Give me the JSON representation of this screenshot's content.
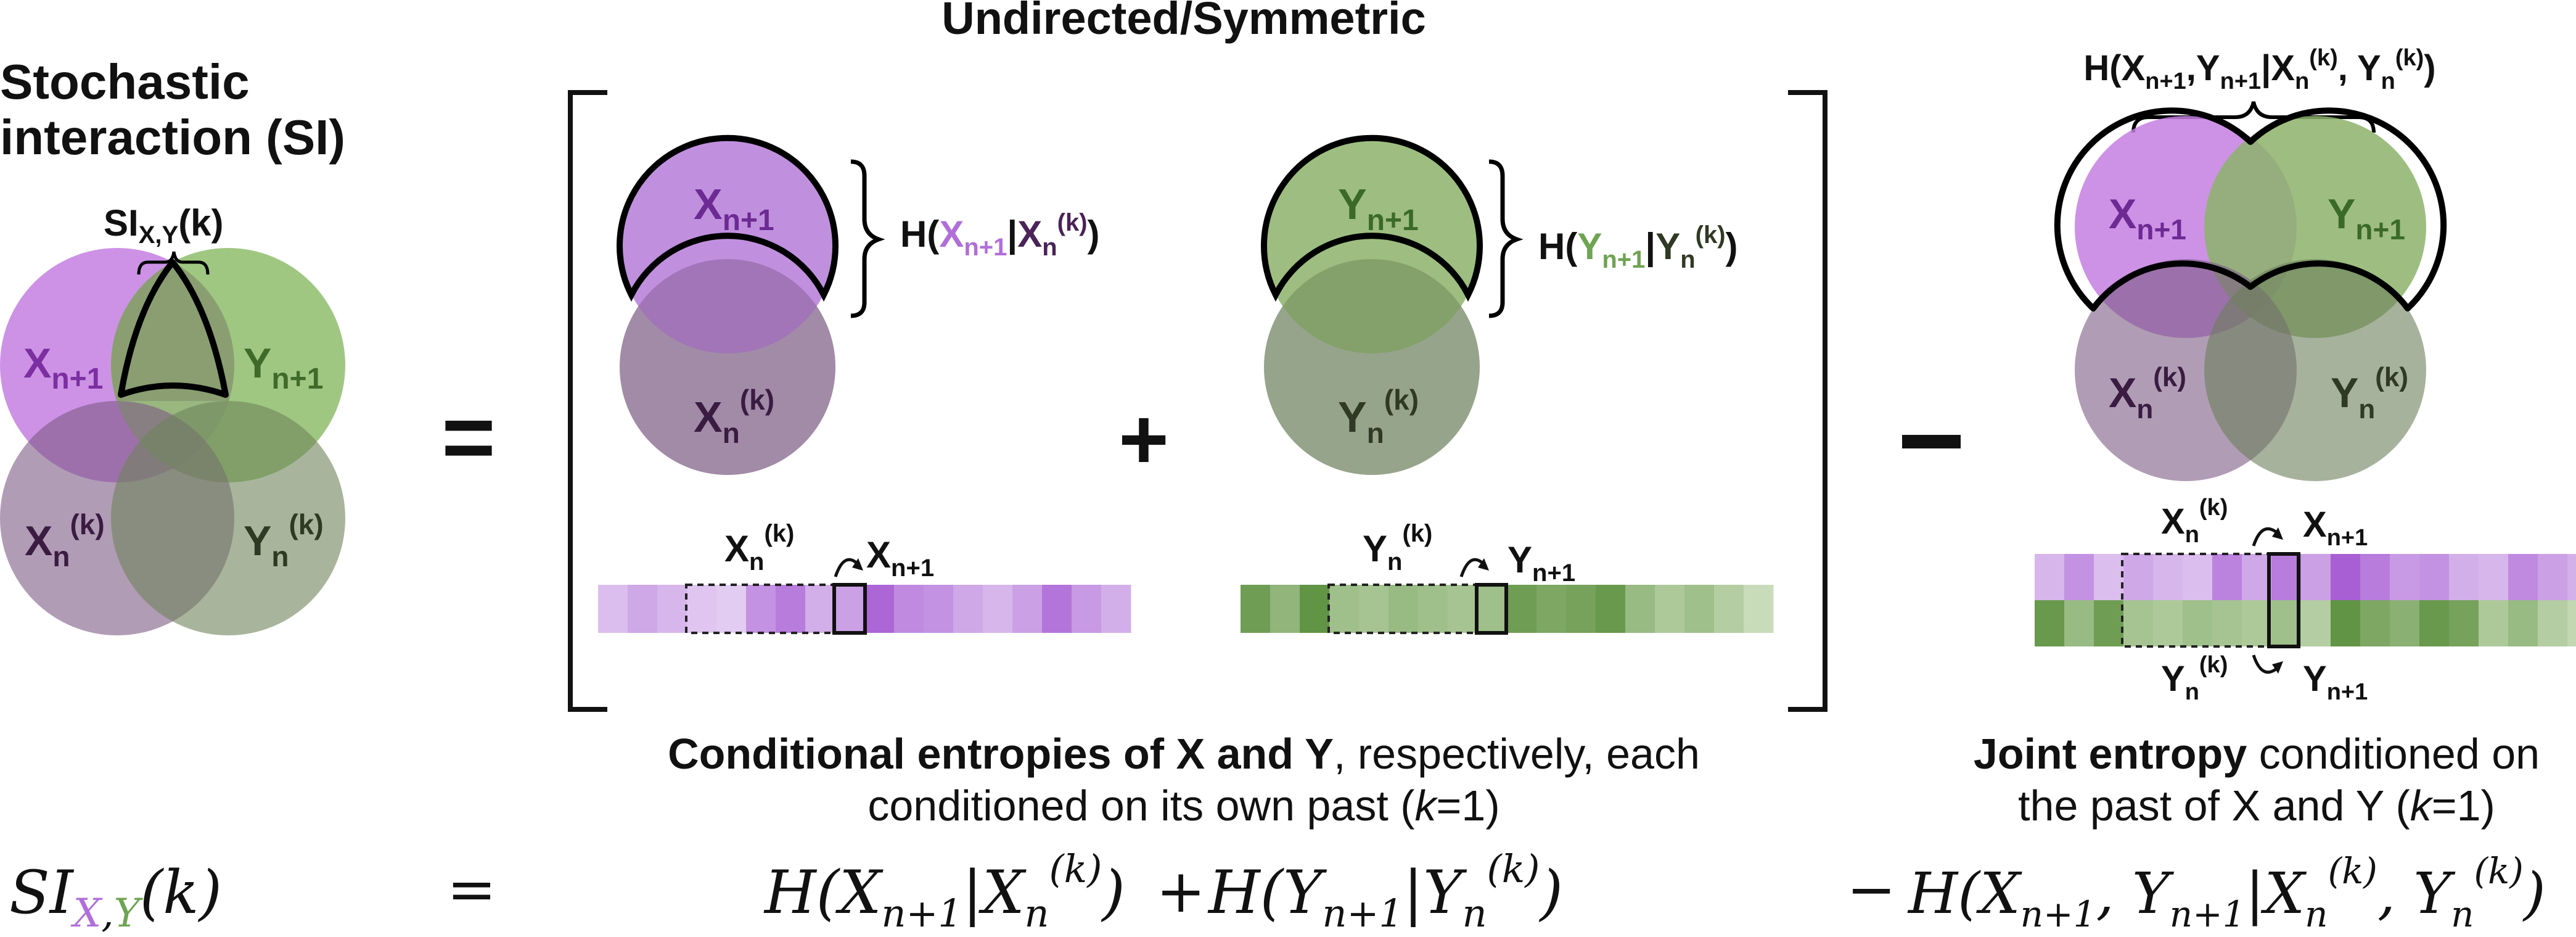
{
  "colors": {
    "purple": "#b06fd8",
    "purple_fill": "#c58fe0",
    "purple_dark": "#4a2358",
    "green": "#6ea452",
    "green_fill": "#93bd73",
    "gray_purple": "#8d7a92",
    "gray_green": "#7f906f",
    "ink": "#111111"
  },
  "header": {
    "title": "Undirected/Symmetric",
    "si_title_line1": "Stochastic",
    "si_title_line2": "interaction (SI)"
  },
  "si_diagram": {
    "brace_label": "SI",
    "brace_sub": "X,Y",
    "brace_arg": "(k)",
    "x_next": "X",
    "x_next_sub": "n+1",
    "y_next": "Y",
    "y_next_sub": "n+1",
    "x_past": "X",
    "x_past_sub": "n",
    "x_past_sup": "(k)",
    "y_past": "Y",
    "y_past_sub": "n",
    "y_past_sup": "(k)"
  },
  "operators": {
    "equals": "=",
    "plus": "+",
    "minus": "−"
  },
  "x_panel": {
    "top_label": "X",
    "top_sub": "n+1",
    "bottom_label": "X",
    "bottom_sub": "n",
    "bottom_sup": "(k)",
    "entropy": {
      "h": "H(",
      "a": "X",
      "a_sub": "n+1",
      "bar": "|",
      "b": "X",
      "b_sub": "n",
      "b_sup": "(k)",
      "close": ")"
    },
    "series_past": "X",
    "series_past_sub": "n",
    "series_past_sup": "(k)",
    "series_next": "X",
    "series_next_sub": "n+1",
    "cells": [
      0.25,
      0.4,
      0.3,
      0.2,
      0.15,
      0.55,
      0.7,
      0.35,
      0.45,
      0.85,
      0.6,
      0.55,
      0.4,
      0.3,
      0.45,
      0.75,
      0.5,
      0.35
    ]
  },
  "y_panel": {
    "top_label": "Y",
    "top_sub": "n+1",
    "bottom_label": "Y",
    "bottom_sub": "n",
    "bottom_sup": "(k)",
    "entropy": {
      "h": "H(",
      "a": "Y",
      "a_sub": "n+1",
      "bar": "|",
      "b": "Y",
      "b_sub": "n",
      "b_sup": "(k)",
      "close": ")"
    },
    "series_past": "Y",
    "series_past_sub": "n",
    "series_past_sup": "(k)",
    "series_next": "Y",
    "series_next_sub": "n+1",
    "cells": [
      0.85,
      0.6,
      0.95,
      0.5,
      0.45,
      0.55,
      0.5,
      0.45,
      0.5,
      0.85,
      0.75,
      0.8,
      0.9,
      0.55,
      0.4,
      0.5,
      0.35,
      0.2
    ]
  },
  "joint_panel": {
    "top_entropy": {
      "h": "H(",
      "a": "X",
      "a_sub": "n+1",
      "comma1": ",",
      "b": "Y",
      "b_sub": "n+1",
      "bar": "|",
      "c": "X",
      "c_sub": "n",
      "c_sup": "(k)",
      "comma2": ", ",
      "d": "Y",
      "d_sub": "n",
      "d_sup": "(k)",
      "close": ")"
    },
    "x_next": "X",
    "x_next_sub": "n+1",
    "y_next": "Y",
    "y_next_sub": "n+1",
    "x_past": "X",
    "x_past_sub": "n",
    "x_past_sup": "(k)",
    "y_past": "Y",
    "y_past_sub": "n",
    "y_past_sup": "(k)",
    "series_x_past": "X",
    "series_x_past_sub": "n",
    "series_x_past_sup": "(k)",
    "series_x_next": "X",
    "series_x_next_sub": "n+1",
    "series_y_past": "Y",
    "series_y_past_sub": "n",
    "series_y_past_sup": "(k)",
    "series_y_next": "Y",
    "series_y_next_sub": "n+1",
    "cells_x": [
      0.3,
      0.55,
      0.25,
      0.4,
      0.3,
      0.25,
      0.65,
      0.4,
      0.7,
      0.45,
      0.9,
      0.7,
      0.5,
      0.55,
      0.35,
      0.3,
      0.6,
      0.45,
      0.35,
      0.3,
      0.45
    ],
    "cells_y": [
      0.9,
      0.55,
      0.85,
      0.45,
      0.4,
      0.5,
      0.45,
      0.4,
      0.5,
      0.35,
      0.95,
      0.75,
      0.65,
      0.9,
      0.8,
      0.4,
      0.55,
      0.35,
      0.25,
      0.2,
      0.1
    ]
  },
  "captions": {
    "conditional_bold": "Conditional entropies of X and Y",
    "conditional_rest": ", respectively, each",
    "conditional_line2_a": "conditioned on its own past (",
    "conditional_line2_k": "k",
    "conditional_line2_b": "=1)",
    "joint_bold": "Joint entropy",
    "joint_rest": " conditioned on",
    "joint_line2_a": "the past of X and Y (",
    "joint_line2_k": "k",
    "joint_line2_b": "=1)"
  },
  "equation": {
    "lhs": "SI",
    "lhs_sub_x": "X",
    "lhs_sub_comma": ",",
    "lhs_sub_y": "Y",
    "lhs_arg": "(k)",
    "equals": "=",
    "term1": "H(X",
    "term1_sub": "n+1",
    "term1_bar": "|X",
    "term1_b_sub": "n",
    "term1_b_sup": "(k)",
    "term1_close": ")",
    "plus": "+",
    "term2": "H(Y",
    "term2_sub": "n+1",
    "term2_bar": "|Y",
    "term2_b_sub": "n",
    "term2_b_sup": "(k)",
    "term2_close": ")",
    "minus": "−",
    "term3": "H(X",
    "term3_a_sub": "n+1",
    "term3_comma": ", Y",
    "term3_b_sub": "n+1",
    "term3_bar": "|X",
    "term3_c_sub": "n",
    "term3_c_sup": "(k)",
    "term3_comma2": ", Y",
    "term3_d_sub": "n",
    "term3_d_sup": "(k)",
    "term3_close": ")"
  }
}
